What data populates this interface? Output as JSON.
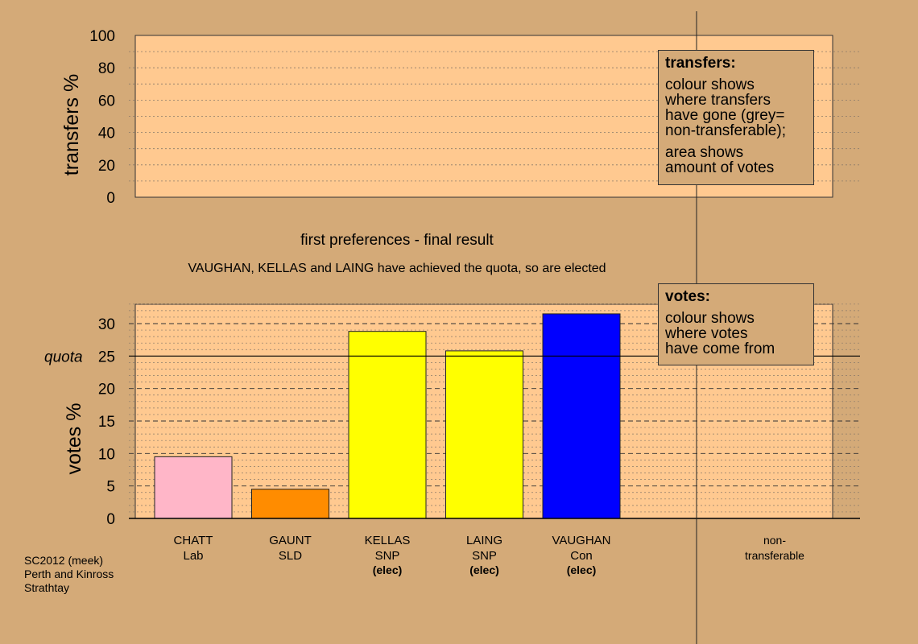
{
  "top_panel": {
    "ylabel": "transfers %",
    "ticks": [
      0,
      20,
      40,
      60,
      80,
      100
    ],
    "legend": {
      "title": "transfers:",
      "lines_a": [
        "colour shows",
        "where transfers",
        "have gone (grey=",
        "non-transferable);"
      ],
      "lines_b": [
        "area shows",
        "amount of votes"
      ]
    }
  },
  "headings": {
    "stage": "first preferences - final result",
    "status": "VAUGHAN, KELLAS and LAING have achieved the quota, so are elected"
  },
  "bottom_legend": {
    "title": "votes:",
    "lines": [
      "colour shows",
      "where votes",
      "have come from"
    ]
  },
  "quota_label": "quota",
  "nontransferable_label": [
    "non-",
    "transferable"
  ],
  "footer": [
    "SC2012 (meek)",
    "Perth and Kinross",
    "Strathtay"
  ],
  "colors": {
    "background": "#d4aa78",
    "plot_area": "#ffc990",
    "Lab": "#ffb6c8",
    "SLD": "#ff8c00",
    "SNP": "#ffff00",
    "Con": "#0000ff"
  },
  "chart_data": {
    "type": "bar",
    "ylabel": "votes %",
    "ylim": [
      0,
      33
    ],
    "yticks": [
      0,
      5,
      10,
      15,
      20,
      25,
      30
    ],
    "quota": 25,
    "categories": [
      "CHATT",
      "GAUNT",
      "KELLAS",
      "LAING",
      "VAUGHAN"
    ],
    "parties": [
      "Lab",
      "SLD",
      "SNP",
      "SNP",
      "Con"
    ],
    "elected": [
      "",
      "",
      "(elec)",
      "(elec)",
      "(elec)"
    ],
    "values": [
      9.5,
      4.5,
      28.8,
      25.8,
      31.5
    ]
  }
}
